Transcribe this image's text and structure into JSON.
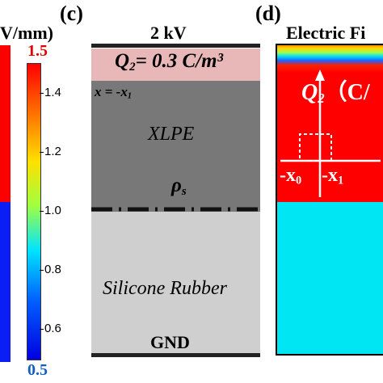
{
  "panel_c": {
    "letter": "(c)",
    "voltage": "2 kV",
    "q2_symbol": "Q",
    "q2_sub": "2",
    "q2_value": "= 0.3 C/m³",
    "x_eq": "x = -x",
    "x_sub": "1",
    "xlpe": "XLPE",
    "rho_symbol": "ρ",
    "rho_sub": "s",
    "rubber": "Silicone Rubber",
    "ground": "GND",
    "colors": {
      "charge_layer": "#e8b8b8",
      "xlpe": "#787878",
      "rubber": "#cfcfcf",
      "electrode": "#222222"
    }
  },
  "colorbar": {
    "unit": "V/mm)",
    "max_label": "1.5",
    "min_label": "0.5",
    "ticks": [
      "1.4",
      "1.2",
      "1.0",
      "0.8",
      "0.6"
    ]
  },
  "panel_d": {
    "letter": "(d)",
    "title": "Electric Fi",
    "q2_symbol": "Q",
    "q2_sub": "2",
    "q2_unit": "（C/",
    "x0_label": "-x",
    "x0_sub": "0",
    "x1_label": "-x",
    "x1_sub": "1",
    "colors": {
      "high_field": "#ff0000",
      "low_field": "#00e6f2"
    }
  }
}
